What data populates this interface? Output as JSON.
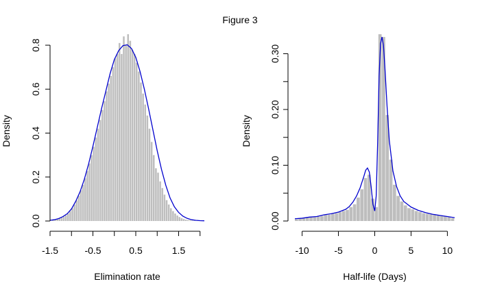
{
  "figure": {
    "title": "Figure 3"
  },
  "chart_data": [
    {
      "type": "bar",
      "title": "",
      "xlabel": "Elimination rate",
      "ylabel": "Density",
      "xlim": [
        -1.5,
        2.1
      ],
      "ylim": [
        0,
        0.85
      ],
      "x_ticks": [
        -1.5,
        -1.0,
        -0.5,
        0.0,
        0.5,
        1.0,
        1.5,
        2.0
      ],
      "x_tick_labels": [
        "-1.5",
        "",
        "-0.5",
        "",
        "0.5",
        "",
        "1.5",
        ""
      ],
      "y_ticks": [
        0.0,
        0.2,
        0.4,
        0.6,
        0.8
      ],
      "y_tick_labels": [
        "0.0",
        "0.2",
        "0.4",
        "0.6",
        "0.8"
      ],
      "grid": false,
      "bar_color": "#bebebe",
      "curve_color": "#0000cd",
      "histogram_bins": [
        [
          -1.5,
          -1.45,
          0.0
        ],
        [
          -1.45,
          -1.4,
          0.005
        ],
        [
          -1.4,
          -1.35,
          0.006
        ],
        [
          -1.35,
          -1.3,
          0.008
        ],
        [
          -1.3,
          -1.25,
          0.011
        ],
        [
          -1.25,
          -1.2,
          0.015
        ],
        [
          -1.2,
          -1.15,
          0.02
        ],
        [
          -1.15,
          -1.1,
          0.026
        ],
        [
          -1.1,
          -1.05,
          0.034
        ],
        [
          -1.05,
          -1.0,
          0.045
        ],
        [
          -1.0,
          -0.95,
          0.058
        ],
        [
          -0.95,
          -0.9,
          0.075
        ],
        [
          -0.9,
          -0.85,
          0.094
        ],
        [
          -0.85,
          -0.8,
          0.115
        ],
        [
          -0.8,
          -0.75,
          0.14
        ],
        [
          -0.75,
          -0.7,
          0.165
        ],
        [
          -0.7,
          -0.65,
          0.195
        ],
        [
          -0.65,
          -0.6,
          0.228
        ],
        [
          -0.6,
          -0.55,
          0.262
        ],
        [
          -0.55,
          -0.5,
          0.3
        ],
        [
          -0.5,
          -0.45,
          0.338
        ],
        [
          -0.45,
          -0.4,
          0.38
        ],
        [
          -0.4,
          -0.35,
          0.42
        ],
        [
          -0.35,
          -0.3,
          0.46
        ],
        [
          -0.3,
          -0.25,
          0.505
        ],
        [
          -0.25,
          -0.2,
          0.545
        ],
        [
          -0.2,
          -0.15,
          0.59
        ],
        [
          -0.15,
          -0.1,
          0.625
        ],
        [
          -0.1,
          -0.05,
          0.66
        ],
        [
          -0.05,
          0.0,
          0.7
        ],
        [
          0.0,
          0.05,
          0.74
        ],
        [
          0.05,
          0.1,
          0.76
        ],
        [
          0.1,
          0.15,
          0.81
        ],
        [
          0.15,
          0.2,
          0.76
        ],
        [
          0.2,
          0.25,
          0.84
        ],
        [
          0.25,
          0.3,
          0.8
        ],
        [
          0.3,
          0.35,
          0.85
        ],
        [
          0.35,
          0.4,
          0.82
        ],
        [
          0.4,
          0.45,
          0.78
        ],
        [
          0.45,
          0.5,
          0.76
        ],
        [
          0.5,
          0.55,
          0.72
        ],
        [
          0.55,
          0.6,
          0.68
        ],
        [
          0.6,
          0.65,
          0.63
        ],
        [
          0.65,
          0.7,
          0.58
        ],
        [
          0.7,
          0.75,
          0.53
        ],
        [
          0.75,
          0.8,
          0.48
        ],
        [
          0.8,
          0.85,
          0.42
        ],
        [
          0.85,
          0.9,
          0.36
        ],
        [
          0.9,
          0.95,
          0.3
        ],
        [
          0.95,
          1.0,
          0.24
        ],
        [
          1.0,
          1.05,
          0.22
        ],
        [
          1.05,
          1.1,
          0.18
        ],
        [
          1.1,
          1.15,
          0.15
        ],
        [
          1.15,
          1.2,
          0.12
        ],
        [
          1.2,
          1.25,
          0.095
        ],
        [
          1.25,
          1.3,
          0.075
        ],
        [
          1.3,
          1.35,
          0.058
        ],
        [
          1.35,
          1.4,
          0.045
        ],
        [
          1.4,
          1.45,
          0.034
        ],
        [
          1.45,
          1.5,
          0.025
        ],
        [
          1.5,
          1.55,
          0.018
        ],
        [
          1.55,
          1.6,
          0.013
        ],
        [
          1.6,
          1.65,
          0.009
        ],
        [
          1.65,
          1.7,
          0.006
        ],
        [
          1.7,
          1.75,
          0.004
        ],
        [
          1.75,
          1.8,
          0.003
        ],
        [
          1.8,
          1.85,
          0.002
        ],
        [
          1.85,
          1.9,
          0.001
        ]
      ],
      "density_curve": [
        [
          -1.5,
          0.003
        ],
        [
          -1.4,
          0.006
        ],
        [
          -1.3,
          0.011
        ],
        [
          -1.2,
          0.02
        ],
        [
          -1.1,
          0.033
        ],
        [
          -1.0,
          0.055
        ],
        [
          -0.9,
          0.09
        ],
        [
          -0.8,
          0.133
        ],
        [
          -0.7,
          0.19
        ],
        [
          -0.6,
          0.26
        ],
        [
          -0.5,
          0.34
        ],
        [
          -0.4,
          0.425
        ],
        [
          -0.3,
          0.51
        ],
        [
          -0.2,
          0.59
        ],
        [
          -0.1,
          0.67
        ],
        [
          0.0,
          0.735
        ],
        [
          0.1,
          0.775
        ],
        [
          0.2,
          0.798
        ],
        [
          0.3,
          0.802
        ],
        [
          0.4,
          0.785
        ],
        [
          0.5,
          0.745
        ],
        [
          0.6,
          0.68
        ],
        [
          0.7,
          0.6
        ],
        [
          0.8,
          0.51
        ],
        [
          0.9,
          0.415
        ],
        [
          1.0,
          0.32
        ],
        [
          1.1,
          0.235
        ],
        [
          1.2,
          0.163
        ],
        [
          1.3,
          0.105
        ],
        [
          1.4,
          0.065
        ],
        [
          1.5,
          0.039
        ],
        [
          1.6,
          0.022
        ],
        [
          1.7,
          0.012
        ],
        [
          1.8,
          0.006
        ],
        [
          1.9,
          0.003
        ],
        [
          2.0,
          0.0015
        ],
        [
          2.1,
          0.001
        ]
      ]
    },
    {
      "type": "bar",
      "title": "",
      "xlabel": "Half-life (Days)",
      "ylabel": "Density",
      "xlim": [
        -11,
        11
      ],
      "ylim": [
        0,
        0.335
      ],
      "x_ticks": [
        -10,
        -5,
        0,
        5,
        10
      ],
      "x_tick_labels": [
        "-10",
        "-5",
        "0",
        "5",
        "10"
      ],
      "y_ticks": [
        0.0,
        0.1,
        0.2,
        0.3
      ],
      "y_tick_labels": [
        "0.00",
        "0.10",
        "0.20",
        "0.30"
      ],
      "y_minor_ticks": [
        0.05,
        0.15,
        0.25
      ],
      "grid": false,
      "bar_color": "#bebebe",
      "curve_color": "#0000cd",
      "histogram_bins": [
        [
          -11.0,
          -10.5,
          0.003
        ],
        [
          -10.5,
          -10.0,
          0.005
        ],
        [
          -10.0,
          -9.5,
          0.006
        ],
        [
          -9.5,
          -9.0,
          0.007
        ],
        [
          -9.0,
          -8.5,
          0.007
        ],
        [
          -8.5,
          -8.0,
          0.007
        ],
        [
          -8.0,
          -7.5,
          0.008
        ],
        [
          -7.5,
          -7.0,
          0.009
        ],
        [
          -7.0,
          -6.5,
          0.011
        ],
        [
          -6.5,
          -6.0,
          0.011
        ],
        [
          -6.0,
          -5.5,
          0.013
        ],
        [
          -5.5,
          -5.0,
          0.014
        ],
        [
          -5.0,
          -4.5,
          0.016
        ],
        [
          -4.5,
          -4.0,
          0.018
        ],
        [
          -4.0,
          -3.5,
          0.02
        ],
        [
          -3.5,
          -3.0,
          0.025
        ],
        [
          -3.0,
          -2.5,
          0.03
        ],
        [
          -2.5,
          -2.0,
          0.042
        ],
        [
          -2.0,
          -1.5,
          0.057
        ],
        [
          -1.5,
          -1.0,
          0.077
        ],
        [
          -1.0,
          -0.5,
          0.083
        ],
        [
          -0.5,
          0.0,
          0.04
        ],
        [
          0.0,
          0.5,
          0.025
        ],
        [
          0.5,
          1.0,
          0.335
        ],
        [
          1.0,
          1.5,
          0.33
        ],
        [
          1.5,
          2.0,
          0.19
        ],
        [
          2.0,
          2.5,
          0.11
        ],
        [
          2.5,
          3.0,
          0.065
        ],
        [
          3.0,
          3.5,
          0.045
        ],
        [
          3.5,
          4.0,
          0.035
        ],
        [
          4.0,
          4.5,
          0.028
        ],
        [
          4.5,
          5.0,
          0.023
        ],
        [
          5.0,
          5.5,
          0.021
        ],
        [
          5.5,
          6.0,
          0.018
        ],
        [
          6.0,
          6.5,
          0.016
        ],
        [
          6.5,
          7.0,
          0.014
        ],
        [
          7.0,
          7.5,
          0.013
        ],
        [
          7.5,
          8.0,
          0.012
        ],
        [
          8.0,
          8.5,
          0.011
        ],
        [
          8.5,
          9.0,
          0.01
        ],
        [
          9.0,
          9.5,
          0.009
        ],
        [
          9.5,
          10.0,
          0.008
        ],
        [
          10.0,
          10.5,
          0.007
        ],
        [
          10.5,
          11.0,
          0.005
        ]
      ],
      "density_curve": [
        [
          -11.0,
          0.004
        ],
        [
          -10.0,
          0.005
        ],
        [
          -9.0,
          0.007
        ],
        [
          -8.0,
          0.008
        ],
        [
          -7.0,
          0.011
        ],
        [
          -6.0,
          0.013
        ],
        [
          -5.0,
          0.016
        ],
        [
          -4.0,
          0.021
        ],
        [
          -3.5,
          0.026
        ],
        [
          -3.0,
          0.034
        ],
        [
          -2.5,
          0.045
        ],
        [
          -2.0,
          0.06
        ],
        [
          -1.5,
          0.08
        ],
        [
          -1.25,
          0.091
        ],
        [
          -1.0,
          0.095
        ],
        [
          -0.75,
          0.088
        ],
        [
          -0.5,
          0.062
        ],
        [
          -0.25,
          0.03
        ],
        [
          0.0,
          0.018
        ],
        [
          0.2,
          0.045
        ],
        [
          0.4,
          0.14
        ],
        [
          0.6,
          0.26
        ],
        [
          0.8,
          0.318
        ],
        [
          1.0,
          0.33
        ],
        [
          1.2,
          0.315
        ],
        [
          1.4,
          0.275
        ],
        [
          1.7,
          0.205
        ],
        [
          2.0,
          0.145
        ],
        [
          2.5,
          0.09
        ],
        [
          3.0,
          0.062
        ],
        [
          3.5,
          0.045
        ],
        [
          4.0,
          0.035
        ],
        [
          5.0,
          0.025
        ],
        [
          6.0,
          0.019
        ],
        [
          7.0,
          0.015
        ],
        [
          8.0,
          0.012
        ],
        [
          9.0,
          0.01
        ],
        [
          10.0,
          0.008
        ],
        [
          11.0,
          0.006
        ]
      ]
    }
  ]
}
